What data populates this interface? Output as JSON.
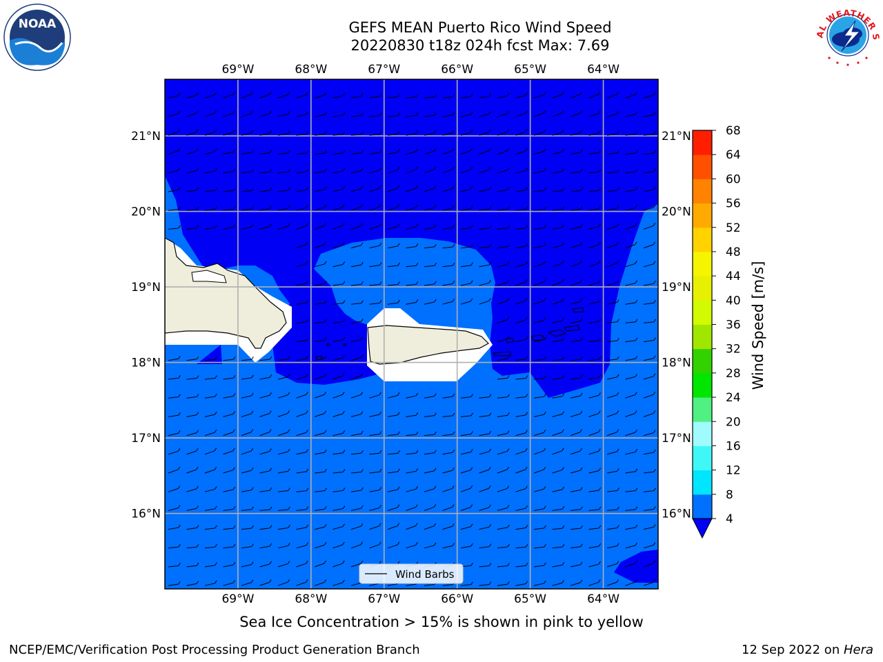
{
  "title": {
    "line1": "GEFS MEAN Puerto Rico Wind Speed",
    "line2": "20220830 t18z 024h fcst   Max: 7.69"
  },
  "map": {
    "lon_range": [
      -70.0,
      -63.25
    ],
    "lat_range": [
      15.0,
      21.75
    ],
    "lon_ticks": [
      -69,
      -68,
      -67,
      -66,
      -65,
      -64
    ],
    "lat_ticks": [
      16,
      17,
      18,
      19,
      20,
      21
    ],
    "lon_labels": [
      "69°W",
      "68°W",
      "67°W",
      "66°W",
      "65°W",
      "64°W"
    ],
    "lat_labels": [
      "16°N",
      "17°N",
      "18°N",
      "19°N",
      "20°N",
      "21°N"
    ],
    "grid": true,
    "colors": {
      "low": "#0000f5",
      "band_4_8": "#0070ff",
      "land": "#efeedc",
      "masked": "#ffffff"
    },
    "barbs": {
      "direction": "from east",
      "legend_label": "Wind Barbs",
      "legend_position": "bottom-center"
    }
  },
  "colorbar": {
    "label": "Wind Speed [m/s]",
    "ticks": [
      4,
      8,
      12,
      16,
      20,
      24,
      28,
      32,
      36,
      40,
      44,
      48,
      52,
      56,
      60,
      64,
      68
    ],
    "colors": [
      "#0070ff",
      "#00e6ff",
      "#40f7f7",
      "#a0fcfc",
      "#50f082",
      "#00e600",
      "#32d200",
      "#a0e600",
      "#d2fa00",
      "#e6f000",
      "#f5f500",
      "#ffd200",
      "#ffaa00",
      "#ff8200",
      "#ff5000",
      "#ff1e00"
    ],
    "under_color": "#0000f5",
    "extend": "min"
  },
  "note": "Sea Ice Concentration > 15% is shown in pink to yellow",
  "footer": {
    "credit": "NCEP/EMC/Verification Post Processing Product Generation Branch",
    "date": "12 Sep 2022 on ",
    "host": "Hera"
  },
  "logos": {
    "left": {
      "icon": "noaa-logo",
      "text": "NOAA"
    },
    "right": {
      "icon": "nws-logo",
      "text": "NATIONAL WEATHER SERVICE"
    }
  }
}
